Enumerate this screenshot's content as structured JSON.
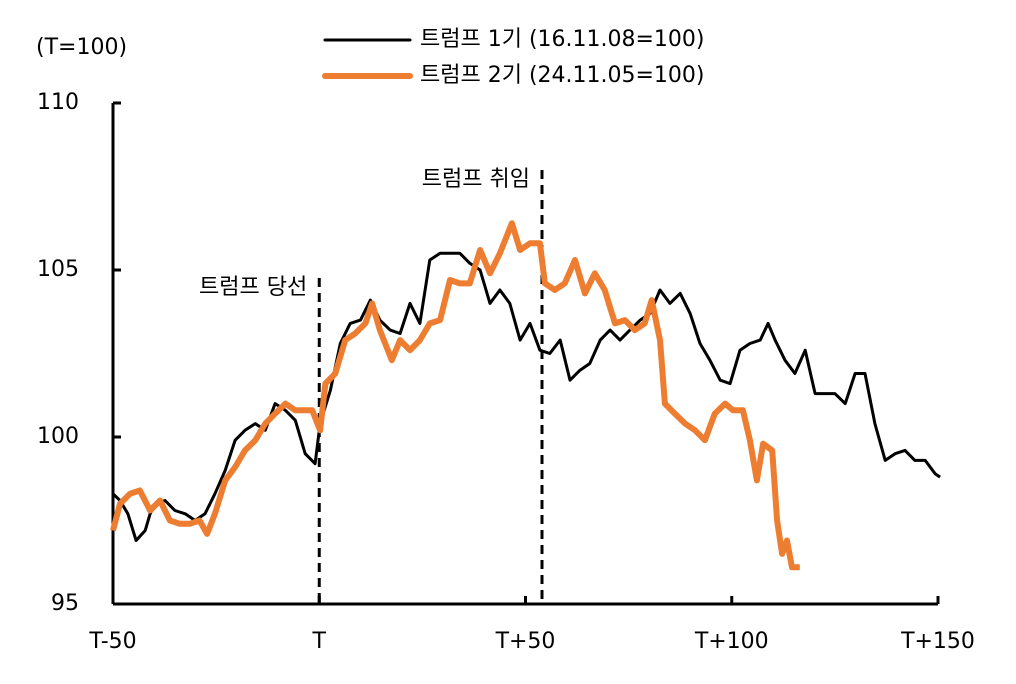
{
  "chart_data": {
    "type": "line",
    "y_axis_label": "(T=100)",
    "xlim": [
      -50,
      150
    ],
    "ylim": [
      95,
      110
    ],
    "xticks": [
      {
        "value": -50,
        "label": "T-50"
      },
      {
        "value": 0,
        "label": "T"
      },
      {
        "value": 50,
        "label": "T+50"
      },
      {
        "value": 100,
        "label": "T+100"
      },
      {
        "value": 150,
        "label": "T+150"
      }
    ],
    "yticks": [
      95,
      100,
      105,
      110
    ],
    "grid": false,
    "legend": "top",
    "annotations": [
      {
        "text": "트럼프 당선",
        "x": 0
      },
      {
        "text": "트럼프 취임",
        "x": 54
      }
    ],
    "series": [
      {
        "name": "트럼프 1기 (16.11.08=100)",
        "color": "#000000",
        "width": 3,
        "x": [
          -50,
          -48.3,
          -46.4,
          -44.4,
          -42.2,
          -41,
          -39.8,
          -37.4,
          -35,
          -32.5,
          -30.1,
          -27.7,
          -25.3,
          -22.8,
          -20.4,
          -18,
          -15.5,
          -13.1,
          -10.7,
          -8.2,
          -5.8,
          -3.4,
          -1,
          0.2,
          2.7,
          5.1,
          7.5,
          10,
          12.4,
          14.7,
          17.2,
          19.6,
          22,
          24.4,
          26.8,
          29.3,
          31.7,
          34.1,
          36.5,
          39,
          41.4,
          43.8,
          46.2,
          48.7,
          51.1,
          53.5,
          55.9,
          58.4,
          60.8,
          63.2,
          65.6,
          68.1,
          70.5,
          72.9,
          75.3,
          77.8,
          80.2,
          82.6,
          85,
          87.5,
          89.9,
          92.3,
          94.7,
          97.2,
          99.6,
          102,
          104.4,
          106.9,
          108.8,
          110.5,
          112.9,
          115.3,
          117.8,
          120.2,
          122.6,
          125,
          127.5,
          129.9,
          132.3,
          134.7,
          137.2,
          139.6,
          142,
          144.4,
          146.9,
          149.3,
          150.5
        ],
        "values": [
          98.3,
          98.1,
          97.7,
          96.9,
          97.2,
          97.7,
          98,
          98.1,
          97.8,
          97.7,
          97.5,
          97.7,
          98.3,
          99,
          99.9,
          100.2,
          100.4,
          100.2,
          101,
          100.8,
          100.5,
          99.5,
          99.2,
          100.4,
          101.4,
          102.8,
          103.4,
          103.5,
          104.1,
          103.5,
          103.2,
          103.1,
          104,
          103.4,
          105.3,
          105.5,
          105.5,
          105.5,
          105.2,
          105,
          104,
          104.4,
          104,
          102.9,
          103.4,
          102.6,
          102.5,
          102.9,
          101.7,
          102,
          102.2,
          102.9,
          103.2,
          102.9,
          103.2,
          103.5,
          103.7,
          104.4,
          104,
          104.3,
          103.7,
          102.8,
          102.3,
          101.7,
          101.6,
          102.6,
          102.8,
          102.9,
          103.4,
          102.9,
          102.3,
          101.9,
          102.6,
          101.3,
          101.3,
          101.3,
          101,
          101.9,
          101.9,
          100.4,
          99.3,
          99.5,
          99.6,
          99.3,
          99.3,
          98.9,
          98.8
        ]
      },
      {
        "name": "트럼프 2기 (24.11.05=100)",
        "color": "#ed7d31",
        "width": 6,
        "x": [
          -50,
          -48.3,
          -45.9,
          -43.5,
          -41,
          -38.6,
          -36.2,
          -33.8,
          -31.4,
          -29,
          -27.2,
          -25.3,
          -22.8,
          -20.4,
          -18,
          -15.5,
          -13.1,
          -10.7,
          -8.2,
          -5.8,
          -3.4,
          -1.7,
          0.2,
          1.5,
          3.9,
          6.3,
          8.7,
          11.2,
          12.8,
          14.7,
          17.6,
          19.6,
          22,
          24.4,
          26.8,
          29.3,
          31.7,
          34.1,
          36.5,
          39,
          41.4,
          43.8,
          46.7,
          48.7,
          51.1,
          53.5,
          54.7,
          57.1,
          59.5,
          62,
          64.4,
          66.8,
          69.2,
          71.7,
          74.1,
          76.5,
          78.9,
          80.6,
          82.6,
          83.8,
          86.2,
          88.7,
          91.1,
          93.5,
          95.9,
          98.4,
          100.3,
          102.7,
          104.4,
          106.1,
          107.6,
          109.8,
          111,
          112.2,
          113.4,
          114.6,
          116.5
        ],
        "values": [
          97.2,
          98,
          98.3,
          98.4,
          97.8,
          98.1,
          97.5,
          97.4,
          97.4,
          97.5,
          97.1,
          97.7,
          98.7,
          99.1,
          99.6,
          99.9,
          100.4,
          100.7,
          101,
          100.8,
          100.8,
          100.8,
          100.2,
          101.6,
          101.9,
          102.9,
          103.1,
          103.4,
          104,
          103.2,
          102.3,
          102.9,
          102.6,
          102.9,
          103.4,
          103.5,
          104.7,
          104.6,
          104.6,
          105.6,
          104.9,
          105.5,
          106.4,
          105.6,
          105.8,
          105.8,
          104.6,
          104.4,
          104.6,
          105.3,
          104.3,
          104.9,
          104.4,
          103.4,
          103.5,
          103.2,
          103.4,
          104.1,
          102.9,
          101,
          100.7,
          100.4,
          100.2,
          99.9,
          100.7,
          101,
          100.8,
          100.8,
          99.9,
          98.7,
          99.8,
          99.6,
          97.5,
          96.5,
          96.9,
          96.1,
          96.1
        ]
      }
    ]
  }
}
